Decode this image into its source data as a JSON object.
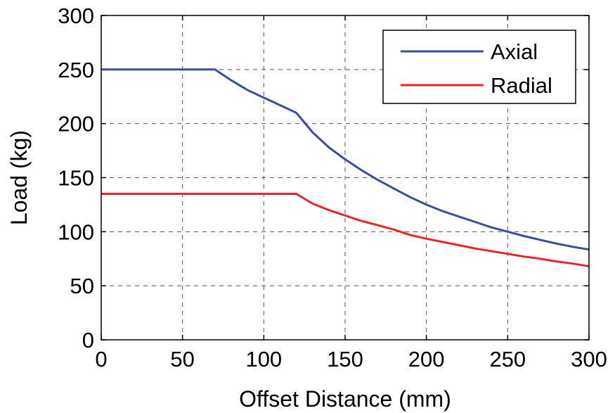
{
  "chart_data": {
    "type": "line",
    "title": "",
    "xlabel": "Offset Distance (mm)",
    "ylabel": "Load (kg)",
    "xlim": [
      0,
      300
    ],
    "ylim": [
      0,
      300
    ],
    "xticks": [
      0,
      50,
      100,
      150,
      200,
      250,
      300
    ],
    "yticks": [
      0,
      50,
      100,
      150,
      200,
      250,
      300
    ],
    "xtick_labels": [
      "0",
      "50",
      "100",
      "150",
      "200",
      "250",
      "300"
    ],
    "ytick_labels": [
      "0",
      "50",
      "100",
      "150",
      "200",
      "250",
      "300"
    ],
    "grid": true,
    "legend_position": "top-right",
    "series": [
      {
        "name": "Axial",
        "color": "#3a4fa0",
        "x": [
          0,
          70,
          80,
          90,
          100,
          110,
          120,
          130,
          140,
          150,
          160,
          170,
          180,
          190,
          200,
          210,
          220,
          230,
          240,
          250,
          260,
          270,
          280,
          290,
          300
        ],
        "y": [
          250,
          250,
          240,
          231,
          224,
          217,
          210,
          192,
          178,
          167,
          157,
          148,
          140,
          132,
          125,
          119,
          114,
          109,
          104,
          100,
          96,
          92.5,
          89,
          86,
          83.5
        ]
      },
      {
        "name": "Radial",
        "color": "#e8262c",
        "x": [
          0,
          120,
          130,
          140,
          150,
          160,
          170,
          180,
          190,
          200,
          210,
          220,
          230,
          240,
          250,
          260,
          270,
          280,
          290,
          300
        ],
        "y": [
          135,
          135,
          126,
          120,
          115,
          110,
          106,
          102,
          97,
          93.5,
          90.5,
          87.5,
          84.5,
          82,
          79.5,
          77,
          75,
          72.5,
          70.5,
          68
        ]
      }
    ]
  }
}
